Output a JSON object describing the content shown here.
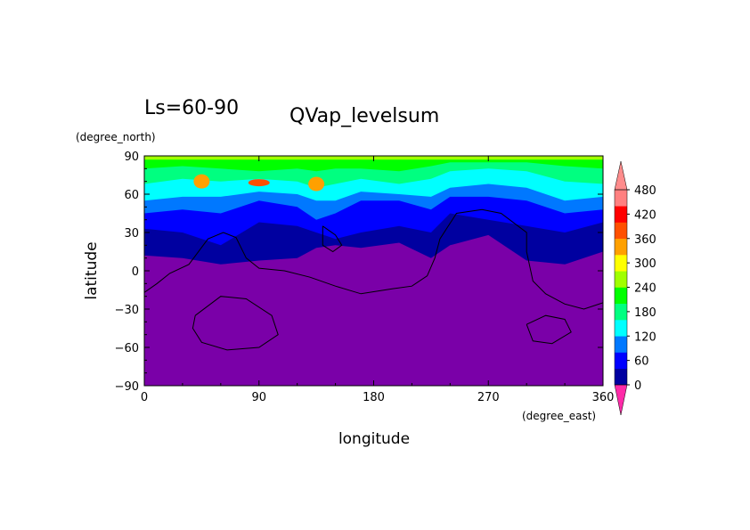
{
  "chart_data": {
    "type": "heatmap",
    "title": "QVap_levelsum",
    "subtitle": "Ls=60-90",
    "xlabel": "longitude",
    "ylabel": "latitude",
    "x_units": "(degree_east)",
    "y_units": "(degree_north)",
    "xlim": [
      0,
      360
    ],
    "ylim": [
      -90,
      90
    ],
    "x_ticks": [
      0,
      90,
      180,
      270,
      360
    ],
    "y_ticks": [
      -90,
      -60,
      -30,
      0,
      30,
      60,
      90
    ],
    "grid": false,
    "colorbar": {
      "levels": [
        0,
        60,
        120,
        180,
        240,
        300,
        360,
        420,
        480
      ],
      "labels": [
        "0",
        "60",
        "120",
        "180",
        "240",
        "300",
        "360",
        "420",
        "480"
      ],
      "colors": [
        "#7a00a8",
        "#0000a0",
        "#0000ff",
        "#0078ff",
        "#00ffff",
        "#00ff80",
        "#00ff00",
        "#a0ff00",
        "#ffff00",
        "#ffa000",
        "#ff5000",
        "#ff0000",
        "#ff8080"
      ],
      "underflow_color": "#7a00a8",
      "overflow_color": "#ff8c8c",
      "extend": "both"
    },
    "band_boundaries": [
      {
        "level": 60,
        "lat_by_lon": [
          [
            0,
            12
          ],
          [
            30,
            10
          ],
          [
            60,
            5
          ],
          [
            90,
            8
          ],
          [
            120,
            10
          ],
          [
            135,
            18
          ],
          [
            150,
            20
          ],
          [
            170,
            18
          ],
          [
            200,
            22
          ],
          [
            225,
            10
          ],
          [
            240,
            20
          ],
          [
            270,
            28
          ],
          [
            300,
            8
          ],
          [
            330,
            5
          ],
          [
            360,
            15
          ]
        ]
      },
      {
        "level": 120,
        "lat_by_lon": [
          [
            0,
            33
          ],
          [
            30,
            30
          ],
          [
            60,
            20
          ],
          [
            90,
            38
          ],
          [
            120,
            35
          ],
          [
            135,
            30
          ],
          [
            150,
            25
          ],
          [
            170,
            30
          ],
          [
            200,
            35
          ],
          [
            225,
            30
          ],
          [
            240,
            45
          ],
          [
            270,
            40
          ],
          [
            300,
            35
          ],
          [
            330,
            30
          ],
          [
            360,
            38
          ]
        ]
      },
      {
        "level": 180,
        "lat_by_lon": [
          [
            0,
            45
          ],
          [
            30,
            48
          ],
          [
            60,
            45
          ],
          [
            90,
            55
          ],
          [
            120,
            50
          ],
          [
            135,
            40
          ],
          [
            150,
            45
          ],
          [
            170,
            55
          ],
          [
            200,
            55
          ],
          [
            225,
            48
          ],
          [
            240,
            58
          ],
          [
            270,
            58
          ],
          [
            300,
            55
          ],
          [
            330,
            45
          ],
          [
            360,
            48
          ]
        ]
      },
      {
        "level": 240,
        "lat_by_lon": [
          [
            0,
            55
          ],
          [
            30,
            58
          ],
          [
            60,
            58
          ],
          [
            90,
            62
          ],
          [
            120,
            60
          ],
          [
            135,
            55
          ],
          [
            150,
            55
          ],
          [
            170,
            62
          ],
          [
            200,
            60
          ],
          [
            225,
            58
          ],
          [
            240,
            65
          ],
          [
            270,
            68
          ],
          [
            300,
            65
          ],
          [
            330,
            55
          ],
          [
            360,
            58
          ]
        ]
      },
      {
        "level": 300,
        "lat_by_lon": [
          [
            0,
            68
          ],
          [
            30,
            72
          ],
          [
            60,
            70
          ],
          [
            90,
            72
          ],
          [
            120,
            70
          ],
          [
            135,
            65
          ],
          [
            150,
            68
          ],
          [
            170,
            72
          ],
          [
            200,
            68
          ],
          [
            225,
            72
          ],
          [
            240,
            78
          ],
          [
            270,
            80
          ],
          [
            300,
            78
          ],
          [
            330,
            70
          ],
          [
            360,
            68
          ]
        ]
      },
      {
        "level": 360,
        "lat_by_lon": [
          [
            0,
            80
          ],
          [
            30,
            82
          ],
          [
            60,
            80
          ],
          [
            90,
            78
          ],
          [
            120,
            80
          ],
          [
            135,
            78
          ],
          [
            150,
            80
          ],
          [
            170,
            80
          ],
          [
            200,
            78
          ],
          [
            225,
            82
          ],
          [
            240,
            85
          ],
          [
            270,
            85
          ],
          [
            300,
            85
          ],
          [
            330,
            82
          ],
          [
            360,
            80
          ]
        ]
      },
      {
        "level": 420,
        "lat_by_lon": [
          [
            0,
            87
          ],
          [
            360,
            87
          ]
        ]
      }
    ],
    "maxima": [
      {
        "lon": 45,
        "lat": 70,
        "level": 360
      },
      {
        "lon": 135,
        "lat": 68,
        "level": 360
      },
      {
        "lon": 90,
        "lat": 69,
        "level": 420
      }
    ],
    "topography_contours": [
      [
        [
          0,
          -17
        ],
        [
          10,
          -10
        ],
        [
          20,
          -2
        ],
        [
          35,
          5
        ],
        [
          50,
          25
        ],
        [
          62,
          30
        ],
        [
          72,
          26
        ],
        [
          80,
          10
        ],
        [
          90,
          2
        ],
        [
          110,
          0
        ],
        [
          130,
          -5
        ],
        [
          150,
          -12
        ],
        [
          170,
          -18
        ],
        [
          195,
          -14
        ],
        [
          210,
          -12
        ],
        [
          222,
          -4
        ],
        [
          228,
          10
        ],
        [
          232,
          25
        ],
        [
          245,
          45
        ],
        [
          265,
          48
        ],
        [
          280,
          45
        ],
        [
          300,
          30
        ],
        [
          300,
          15
        ],
        [
          305,
          -8
        ],
        [
          315,
          -18
        ],
        [
          330,
          -26
        ],
        [
          345,
          -30
        ],
        [
          360,
          -25
        ]
      ],
      [
        [
          40,
          -35
        ],
        [
          60,
          -20
        ],
        [
          80,
          -22
        ],
        [
          100,
          -35
        ],
        [
          105,
          -50
        ],
        [
          90,
          -60
        ],
        [
          65,
          -62
        ],
        [
          45,
          -56
        ],
        [
          38,
          -45
        ],
        [
          40,
          -35
        ]
      ],
      [
        [
          300,
          -42
        ],
        [
          315,
          -35
        ],
        [
          330,
          -38
        ],
        [
          335,
          -48
        ],
        [
          320,
          -57
        ],
        [
          305,
          -55
        ],
        [
          300,
          -42
        ]
      ],
      [
        [
          140,
          35
        ],
        [
          150,
          28
        ],
        [
          155,
          20
        ],
        [
          148,
          15
        ],
        [
          140,
          20
        ],
        [
          140,
          35
        ]
      ]
    ]
  }
}
